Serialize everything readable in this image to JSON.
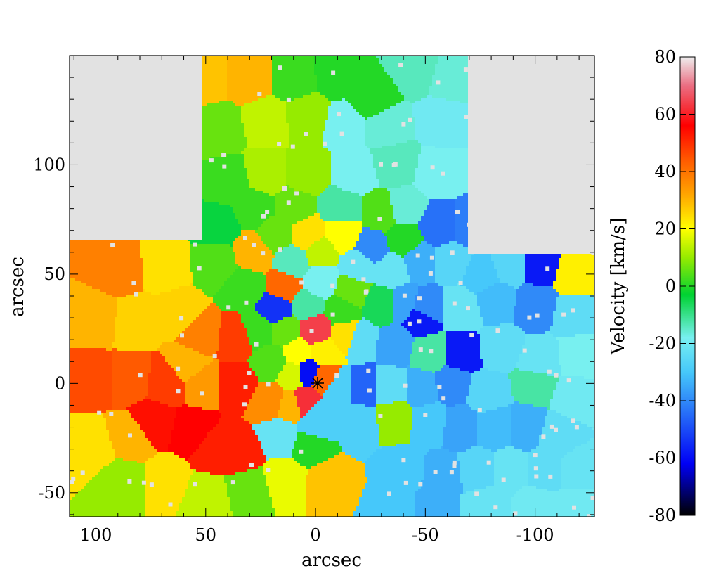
{
  "chart_data": {
    "type": "heatmap",
    "xlabel": "arcsec",
    "ylabel": "arcsec",
    "xlim": [
      112,
      -127
    ],
    "ylim": [
      -61,
      150
    ],
    "x_ticks": [
      100,
      50,
      0,
      -50,
      -100
    ],
    "y_ticks": [
      100,
      50,
      0,
      -50
    ],
    "colorbar": {
      "label": "Velocity [km/s]",
      "range": [
        -80,
        80
      ],
      "ticks": [
        80,
        60,
        40,
        20,
        0,
        -20,
        -40,
        -60,
        -80
      ],
      "colormap": "rainbow: black-blue-cyan-green-yellow-orange-red-pink-white"
    },
    "center_marker": {
      "x": 0,
      "y": 0,
      "symbol": "asterisk"
    },
    "background_color": "#e2e2e2",
    "cells": [
      {
        "x": 90,
        "y": 52,
        "v": 38
      },
      {
        "x": 68,
        "y": 54,
        "v": 24
      },
      {
        "x": 45,
        "y": 55,
        "v": 4
      },
      {
        "x": 100,
        "y": 30,
        "v": 30
      },
      {
        "x": 82,
        "y": 28,
        "v": 26
      },
      {
        "x": 62,
        "y": 32,
        "v": 26
      },
      {
        "x": 52,
        "y": 22,
        "v": 38
      },
      {
        "x": 36,
        "y": 20,
        "v": 48
      },
      {
        "x": 58,
        "y": 8,
        "v": 30
      },
      {
        "x": 102,
        "y": 2,
        "v": 46
      },
      {
        "x": 84,
        "y": 2,
        "v": 44
      },
      {
        "x": 68,
        "y": 0,
        "v": 48
      },
      {
        "x": 52,
        "y": 0,
        "v": 34
      },
      {
        "x": 36,
        "y": 0,
        "v": 52
      },
      {
        "x": 20,
        "y": -8,
        "v": 36
      },
      {
        "x": 102,
        "y": -30,
        "v": 24
      },
      {
        "x": 84,
        "y": -25,
        "v": 30
      },
      {
        "x": 74,
        "y": -18,
        "v": 54
      },
      {
        "x": 56,
        "y": -22,
        "v": 56
      },
      {
        "x": 46,
        "y": -30,
        "v": 52
      },
      {
        "x": 34,
        "y": -32,
        "v": 52
      },
      {
        "x": 88,
        "y": -45,
        "v": 10
      },
      {
        "x": 68,
        "y": -45,
        "v": 24
      },
      {
        "x": 50,
        "y": -52,
        "v": 14
      },
      {
        "x": 30,
        "y": -48,
        "v": 6
      },
      {
        "x": 14,
        "y": -44,
        "v": 18
      },
      {
        "x": -6,
        "y": -45,
        "v": 28
      },
      {
        "x": 2,
        "y": -28,
        "v": 0
      },
      {
        "x": 16,
        "y": -24,
        "v": -22
      },
      {
        "x": 0,
        "y": -20,
        "v": -28
      },
      {
        "x": 12,
        "y": -10,
        "v": 30
      },
      {
        "x": 4,
        "y": -8,
        "v": 62
      },
      {
        "x": -2,
        "y": -14,
        "v": -28
      },
      {
        "x": 10,
        "y": 4,
        "v": 16
      },
      {
        "x": 4,
        "y": 5,
        "v": -60
      },
      {
        "x": -4,
        "y": 2,
        "v": 42
      },
      {
        "x": 20,
        "y": 10,
        "v": 4
      },
      {
        "x": 8,
        "y": 14,
        "v": 20
      },
      {
        "x": -4,
        "y": 14,
        "v": 22
      },
      {
        "x": 26,
        "y": 24,
        "v": 2
      },
      {
        "x": 14,
        "y": 24,
        "v": 6
      },
      {
        "x": 0,
        "y": 24,
        "v": 64
      },
      {
        "x": -14,
        "y": 22,
        "v": 24
      },
      {
        "x": 18,
        "y": 34,
        "v": -54
      },
      {
        "x": 4,
        "y": 36,
        "v": -12
      },
      {
        "x": -12,
        "y": 34,
        "v": 2
      },
      {
        "x": 32,
        "y": 44,
        "v": 2
      },
      {
        "x": 14,
        "y": 44,
        "v": 42
      },
      {
        "x": -2,
        "y": 46,
        "v": -18
      },
      {
        "x": -16,
        "y": 42,
        "v": 6
      },
      {
        "x": 28,
        "y": 60,
        "v": 30
      },
      {
        "x": 10,
        "y": 56,
        "v": -14
      },
      {
        "x": -2,
        "y": 60,
        "v": 14
      },
      {
        "x": -20,
        "y": 54,
        "v": -22
      },
      {
        "x": 18,
        "y": 68,
        "v": 6
      },
      {
        "x": 4,
        "y": 68,
        "v": 24
      },
      {
        "x": -12,
        "y": 68,
        "v": 20
      },
      {
        "x": -26,
        "y": 62,
        "v": -40
      },
      {
        "x": 44,
        "y": 72,
        "v": -4
      },
      {
        "x": 28,
        "y": 80,
        "v": 2
      },
      {
        "x": 10,
        "y": 80,
        "v": 6
      },
      {
        "x": -12,
        "y": 80,
        "v": -12
      },
      {
        "x": -30,
        "y": 78,
        "v": 4
      },
      {
        "x": 40,
        "y": 92,
        "v": 2
      },
      {
        "x": 22,
        "y": 96,
        "v": 12
      },
      {
        "x": 4,
        "y": 96,
        "v": 10
      },
      {
        "x": -18,
        "y": 96,
        "v": -18
      },
      {
        "x": -36,
        "y": 100,
        "v": -14
      },
      {
        "x": -56,
        "y": 96,
        "v": -18
      },
      {
        "x": 44,
        "y": 116,
        "v": 6
      },
      {
        "x": 22,
        "y": 120,
        "v": 14
      },
      {
        "x": 4,
        "y": 122,
        "v": 10
      },
      {
        "x": -14,
        "y": 118,
        "v": -18
      },
      {
        "x": -32,
        "y": 118,
        "v": -16
      },
      {
        "x": -58,
        "y": 120,
        "v": -20
      },
      {
        "x": 50,
        "y": 140,
        "v": 28
      },
      {
        "x": 30,
        "y": 140,
        "v": 30
      },
      {
        "x": 10,
        "y": 140,
        "v": 2
      },
      {
        "x": -10,
        "y": 142,
        "v": 0
      },
      {
        "x": -26,
        "y": 130,
        "v": 0
      },
      {
        "x": -46,
        "y": 144,
        "v": -14
      },
      {
        "x": -62,
        "y": 140,
        "v": -16
      },
      {
        "x": -40,
        "y": 80,
        "v": -16
      },
      {
        "x": -40,
        "y": 66,
        "v": 0
      },
      {
        "x": -56,
        "y": 72,
        "v": -44
      },
      {
        "x": -70,
        "y": 72,
        "v": -42
      },
      {
        "x": -34,
        "y": 52,
        "v": -22
      },
      {
        "x": -48,
        "y": 56,
        "v": -34
      },
      {
        "x": -62,
        "y": 56,
        "v": -26
      },
      {
        "x": -76,
        "y": 50,
        "v": -30
      },
      {
        "x": -88,
        "y": 54,
        "v": -26
      },
      {
        "x": -102,
        "y": 54,
        "v": -58
      },
      {
        "x": -118,
        "y": 50,
        "v": 22
      },
      {
        "x": -30,
        "y": 36,
        "v": -6
      },
      {
        "x": -40,
        "y": 36,
        "v": -36
      },
      {
        "x": -50,
        "y": 34,
        "v": -40
      },
      {
        "x": -48,
        "y": 30,
        "v": -58
      },
      {
        "x": -66,
        "y": 34,
        "v": -22
      },
      {
        "x": -82,
        "y": 38,
        "v": -32
      },
      {
        "x": -100,
        "y": 36,
        "v": -40
      },
      {
        "x": -118,
        "y": 32,
        "v": -24
      },
      {
        "x": -20,
        "y": 20,
        "v": -24
      },
      {
        "x": -36,
        "y": 18,
        "v": -36
      },
      {
        "x": -52,
        "y": 14,
        "v": -12
      },
      {
        "x": -66,
        "y": 14,
        "v": -58
      },
      {
        "x": -84,
        "y": 16,
        "v": -24
      },
      {
        "x": -102,
        "y": 10,
        "v": -22
      },
      {
        "x": -120,
        "y": 12,
        "v": -18
      },
      {
        "x": -10,
        "y": -2,
        "v": -28
      },
      {
        "x": -22,
        "y": -2,
        "v": -46
      },
      {
        "x": -34,
        "y": -2,
        "v": -24
      },
      {
        "x": -48,
        "y": -2,
        "v": -34
      },
      {
        "x": -62,
        "y": 0,
        "v": -40
      },
      {
        "x": -78,
        "y": -4,
        "v": -26
      },
      {
        "x": -100,
        "y": 0,
        "v": -12
      },
      {
        "x": -118,
        "y": -6,
        "v": -20
      },
      {
        "x": -20,
        "y": -18,
        "v": -28
      },
      {
        "x": -36,
        "y": -16,
        "v": 10
      },
      {
        "x": -52,
        "y": -18,
        "v": -30
      },
      {
        "x": -66,
        "y": -20,
        "v": -36
      },
      {
        "x": -82,
        "y": -20,
        "v": -32
      },
      {
        "x": -96,
        "y": -20,
        "v": -34
      },
      {
        "x": -110,
        "y": -24,
        "v": -24
      },
      {
        "x": -40,
        "y": -40,
        "v": -30
      },
      {
        "x": -58,
        "y": -42,
        "v": -34
      },
      {
        "x": -74,
        "y": -40,
        "v": -26
      },
      {
        "x": -88,
        "y": -40,
        "v": -22
      },
      {
        "x": -104,
        "y": -40,
        "v": -24
      },
      {
        "x": -120,
        "y": -40,
        "v": -22
      },
      {
        "x": -36,
        "y": -56,
        "v": -30
      },
      {
        "x": -54,
        "y": -56,
        "v": -34
      },
      {
        "x": -78,
        "y": -56,
        "v": -22
      },
      {
        "x": -100,
        "y": -56,
        "v": -20
      },
      {
        "x": -120,
        "y": -56,
        "v": -20
      }
    ]
  }
}
